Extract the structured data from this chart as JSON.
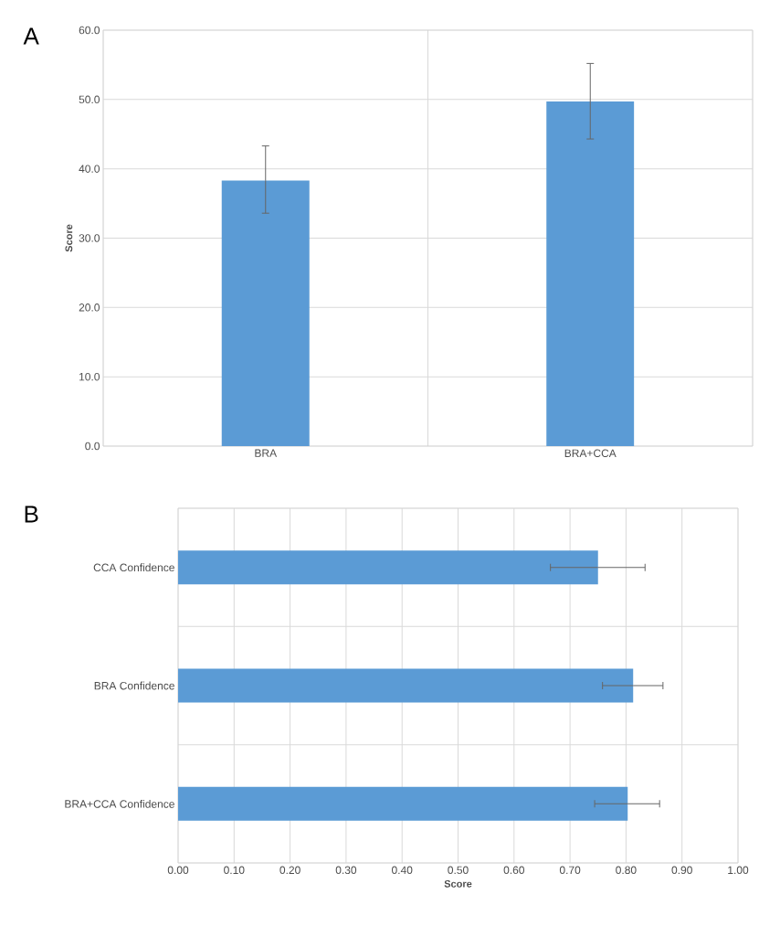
{
  "chart_data": [
    {
      "type": "bar",
      "title": "A",
      "ylabel": "Score",
      "categories": [
        "BRA",
        "BRA+CCA"
      ],
      "values": [
        38.3,
        49.7
      ],
      "color": "#5b9bd5",
      "errors": [
        [
          33.6,
          43.3
        ],
        [
          44.3,
          55.2
        ]
      ],
      "ylim": [
        0,
        60
      ],
      "yticks": [
        {
          "value": 0,
          "label": "0.0"
        },
        {
          "value": 10,
          "label": "10.0"
        },
        {
          "value": 20,
          "label": "20.0"
        },
        {
          "value": 30,
          "label": "30.0"
        },
        {
          "value": 40,
          "label": "40.0"
        },
        {
          "value": 50,
          "label": "50.0"
        },
        {
          "value": 60,
          "label": "60.0"
        }
      ],
      "grid": true
    },
    {
      "type": "bar",
      "orientation": "horizontal",
      "title": "B",
      "xlabel": "Score",
      "categories": [
        "CCA Confidence",
        "BRA Confidence",
        "BRA+CCA Confidence"
      ],
      "values": [
        0.75,
        0.813,
        0.803
      ],
      "color": "#5b9bd5",
      "errors": [
        [
          0.665,
          0.834
        ],
        [
          0.758,
          0.866
        ],
        [
          0.744,
          0.86
        ]
      ],
      "xlim": [
        0,
        1
      ],
      "xticks": [
        {
          "value": 0,
          "label": "0.00"
        },
        {
          "value": 0.1,
          "label": "0.10"
        },
        {
          "value": 0.2,
          "label": "0.20"
        },
        {
          "value": 0.3,
          "label": "0.30"
        },
        {
          "value": 0.4,
          "label": "0.40"
        },
        {
          "value": 0.5,
          "label": "0.50"
        },
        {
          "value": 0.6,
          "label": "0.60"
        },
        {
          "value": 0.7,
          "label": "0.70"
        },
        {
          "value": 0.8,
          "label": "0.80"
        },
        {
          "value": 0.9,
          "label": "0.90"
        },
        {
          "value": 1,
          "label": "1.00"
        }
      ],
      "grid": true
    }
  ]
}
